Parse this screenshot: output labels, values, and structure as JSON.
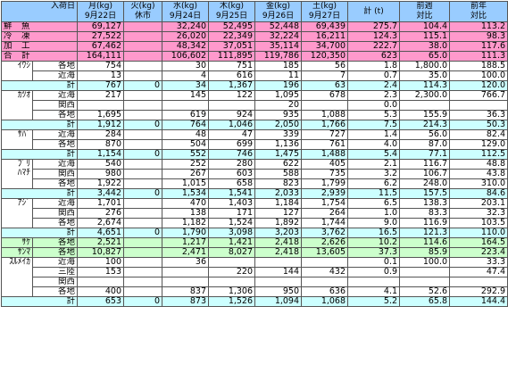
{
  "header": {
    "corner": "入荷日",
    "days": [
      {
        "top": "月(kg)",
        "bottom": "9月22日"
      },
      {
        "top": "火(kg)",
        "bottom": "休市"
      },
      {
        "top": "水(kg)",
        "bottom": "9月24日"
      },
      {
        "top": "木(kg)",
        "bottom": "9月25日"
      },
      {
        "top": "金(kg)",
        "bottom": "9月26日"
      },
      {
        "top": "土(kg)",
        "bottom": "9月27日"
      }
    ],
    "total": "計 (t)",
    "prev_week": {
      "top": "前週",
      "bottom": "対比"
    },
    "prev_year": {
      "top": "前年",
      "bottom": "対比"
    }
  },
  "summary": [
    {
      "name": "鮮　魚",
      "vals": [
        "69,127",
        "",
        "32,240",
        "52,495",
        "52,448",
        "69,439",
        "275.7",
        "104.4",
        "113.2"
      ]
    },
    {
      "name": "冷　凍",
      "vals": [
        "27,522",
        "",
        "26,020",
        "22,349",
        "32,224",
        "16,211",
        "124.3",
        "115.1",
        "98.3"
      ]
    },
    {
      "name": "加　工",
      "vals": [
        "67,462",
        "",
        "48,342",
        "37,051",
        "35,114",
        "34,700",
        "222.7",
        "38.0",
        "117.6"
      ]
    },
    {
      "name": "合　計",
      "vals": [
        "164,111",
        "",
        "106,602",
        "111,895",
        "119,786",
        "120,350",
        "623",
        "65.0",
        "111.3"
      ]
    }
  ],
  "groups": [
    {
      "name": "ｲﾜｼ",
      "rows": [
        {
          "region": "各地",
          "vals": [
            "754",
            "",
            "30",
            "751",
            "185",
            "56",
            "1.8",
            "1,800.0",
            "188.5"
          ]
        },
        {
          "region": "近海",
          "vals": [
            "13",
            "",
            "4",
            "616",
            "11",
            "7",
            "0.7",
            "35.0",
            "100.0"
          ]
        }
      ],
      "total": [
        "767",
        "0",
        "34",
        "1,367",
        "196",
        "63",
        "2.4",
        "114.3",
        "120.0"
      ]
    },
    {
      "name": "ｶﾂｵ",
      "rows": [
        {
          "region": "近海",
          "vals": [
            "217",
            "",
            "145",
            "122",
            "1,095",
            "678",
            "2.3",
            "2,300.0",
            "766.7"
          ]
        },
        {
          "region": "関西",
          "vals": [
            "",
            "",
            "",
            "",
            "20",
            "",
            "0.0",
            "",
            ""
          ]
        },
        {
          "region": "各地",
          "vals": [
            "1,695",
            "",
            "619",
            "924",
            "935",
            "1,088",
            "5.3",
            "155.9",
            "36.3"
          ]
        }
      ],
      "total": [
        "1,912",
        "0",
        "764",
        "1,046",
        "2,050",
        "1,766",
        "7.5",
        "214.3",
        "50.3"
      ]
    },
    {
      "name": "ｻﾊﾞ",
      "rows": [
        {
          "region": "近海",
          "vals": [
            "284",
            "",
            "48",
            "47",
            "339",
            "727",
            "1.4",
            "56.0",
            "82.4"
          ]
        },
        {
          "region": "各地",
          "vals": [
            "870",
            "",
            "504",
            "699",
            "1,136",
            "761",
            "4.0",
            "87.0",
            "129.0"
          ]
        }
      ],
      "total": [
        "1,154",
        "0",
        "552",
        "746",
        "1,475",
        "1,488",
        "5.4",
        "77.1",
        "112.5"
      ]
    },
    {
      "name": "ﾌﾞﾘ\nﾊﾏﾁ",
      "rows": [
        {
          "region": "近海",
          "vals": [
            "540",
            "",
            "252",
            "280",
            "622",
            "405",
            "2.1",
            "116.7",
            "48.8"
          ]
        },
        {
          "region": "関西",
          "vals": [
            "980",
            "",
            "267",
            "603",
            "588",
            "735",
            "3.2",
            "106.7",
            "43.8"
          ]
        },
        {
          "region": "各地",
          "vals": [
            "1,922",
            "",
            "1,015",
            "658",
            "823",
            "1,799",
            "6.2",
            "248.0",
            "310.0"
          ]
        }
      ],
      "total": [
        "3,442",
        "0",
        "1,534",
        "1,541",
        "2,033",
        "2,939",
        "11.5",
        "157.5",
        "84.6"
      ]
    },
    {
      "name": "ｱｼﾞ",
      "rows": [
        {
          "region": "近海",
          "vals": [
            "1,701",
            "",
            "470",
            "1,403",
            "1,184",
            "1,754",
            "6.5",
            "138.3",
            "203.1"
          ]
        },
        {
          "region": "関西",
          "vals": [
            "276",
            "",
            "138",
            "171",
            "127",
            "264",
            "1.0",
            "83.3",
            "32.3"
          ]
        },
        {
          "region": "各地",
          "vals": [
            "2,674",
            "",
            "1,182",
            "1,524",
            "1,892",
            "1,744",
            "9.0",
            "116.9",
            "103.5"
          ]
        }
      ],
      "total": [
        "4,651",
        "0",
        "1,790",
        "3,098",
        "3,203",
        "3,762",
        "16.5",
        "121.3",
        "110.0"
      ]
    }
  ],
  "singles": [
    {
      "name": "ｻｹ",
      "region": "各地",
      "vals": [
        "2,521",
        "",
        "1,217",
        "1,421",
        "2,418",
        "2,626",
        "10.2",
        "114.6",
        "164.5"
      ]
    },
    {
      "name": "ｻﾝﾏ",
      "region": "各地",
      "vals": [
        "10,827",
        "",
        "2,471",
        "8,027",
        "2,418",
        "13,605",
        "37.3",
        "85.9",
        "223.4"
      ]
    }
  ],
  "surume": {
    "name": "ｽﾙﾒｲｶ",
    "rows": [
      {
        "region": "近海",
        "vals": [
          "100",
          "",
          "36",
          "",
          "",
          "",
          "0.1",
          "100.0",
          "33.3"
        ]
      },
      {
        "region": "三陸",
        "vals": [
          "153",
          "",
          "",
          "220",
          "144",
          "432",
          "0.9",
          "",
          "47.4"
        ]
      },
      {
        "region": "関西",
        "vals": [
          "",
          "",
          "",
          "",
          "",
          "",
          "",
          "",
          ""
        ]
      },
      {
        "region": "各地",
        "vals": [
          "400",
          "",
          "837",
          "1,306",
          "950",
          "636",
          "4.1",
          "52.6",
          "292.9"
        ]
      }
    ],
    "total": [
      "653",
      "0",
      "873",
      "1,526",
      "1,094",
      "1,068",
      "5.2",
      "65.8",
      "144.4"
    ]
  },
  "total_label": "計"
}
